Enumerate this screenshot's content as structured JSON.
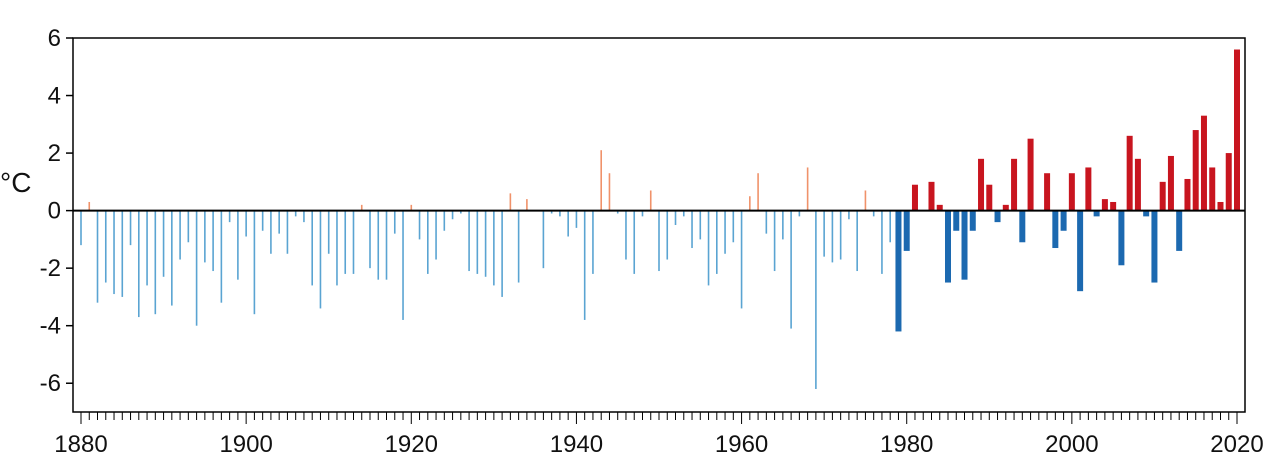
{
  "chart_data": {
    "type": "bar",
    "ylabel": "°C",
    "xlabel": "",
    "ylim": [
      -7,
      6
    ],
    "xlim": [
      1880,
      2020
    ],
    "y_ticks": [
      "6",
      "4",
      "2",
      "0",
      "-2",
      "-4",
      "-6"
    ],
    "x_ticks": [
      "1880",
      "1900",
      "1920",
      "1940",
      "1960",
      "1980",
      "2000",
      "2020"
    ],
    "grid": false,
    "colors": {
      "early_positive": "#f0926a",
      "early_negative": "#5aa4d2",
      "recent_positive": "#c8151f",
      "recent_negative": "#1c69b0",
      "axis": "#000000"
    },
    "x": [
      1880,
      1881,
      1882,
      1883,
      1884,
      1885,
      1886,
      1887,
      1888,
      1889,
      1890,
      1891,
      1892,
      1893,
      1894,
      1895,
      1896,
      1897,
      1898,
      1899,
      1900,
      1901,
      1902,
      1903,
      1904,
      1905,
      1906,
      1907,
      1908,
      1909,
      1910,
      1911,
      1912,
      1913,
      1914,
      1915,
      1916,
      1917,
      1918,
      1919,
      1920,
      1921,
      1922,
      1923,
      1924,
      1925,
      1926,
      1927,
      1928,
      1929,
      1930,
      1931,
      1932,
      1933,
      1934,
      1935,
      1936,
      1937,
      1938,
      1939,
      1940,
      1941,
      1942,
      1943,
      1944,
      1945,
      1946,
      1947,
      1948,
      1949,
      1950,
      1951,
      1952,
      1953,
      1954,
      1955,
      1956,
      1957,
      1958,
      1959,
      1960,
      1961,
      1962,
      1963,
      1964,
      1965,
      1966,
      1967,
      1968,
      1969,
      1970,
      1971,
      1972,
      1973,
      1974,
      1975,
      1976,
      1977,
      1978,
      1979,
      1980,
      1981,
      1982,
      1983,
      1984,
      1985,
      1986,
      1987,
      1988,
      1989,
      1990,
      1991,
      1992,
      1993,
      1994,
      1995,
      1996,
      1997,
      1998,
      1999,
      2000,
      2001,
      2002,
      2003,
      2004,
      2005,
      2006,
      2007,
      2008,
      2009,
      2010,
      2011,
      2012,
      2013,
      2014,
      2015,
      2016,
      2017,
      2018,
      2019,
      2020
    ],
    "values": [
      -1.2,
      0.3,
      -3.2,
      -2.5,
      -2.9,
      -3.0,
      -1.2,
      -3.7,
      -2.6,
      -3.6,
      -2.3,
      -3.3,
      -1.7,
      -1.1,
      -4.0,
      -1.8,
      -2.1,
      -3.2,
      -0.4,
      -2.4,
      -0.9,
      -3.6,
      -0.7,
      -1.5,
      -0.8,
      -1.5,
      -0.2,
      -0.4,
      -2.6,
      -3.4,
      -1.5,
      -2.6,
      -2.2,
      -2.2,
      0.2,
      -2.0,
      -2.4,
      -2.4,
      -0.8,
      -3.8,
      0.2,
      -1.0,
      -2.2,
      -1.7,
      -0.7,
      -0.3,
      -0.1,
      -2.1,
      -2.2,
      -2.3,
      -2.6,
      -3.0,
      0.6,
      -2.5,
      0.4,
      0.0,
      -2.0,
      -0.1,
      -0.2,
      -0.9,
      -0.6,
      -3.8,
      -2.2,
      2.1,
      1.3,
      -0.1,
      -1.7,
      -2.2,
      -0.2,
      0.7,
      -2.1,
      -1.7,
      -0.5,
      -0.2,
      -1.3,
      -1.0,
      -2.6,
      -2.2,
      -1.5,
      -1.1,
      -3.4,
      0.5,
      1.3,
      -0.8,
      -2.1,
      -1.0,
      -4.1,
      -0.2,
      1.5,
      -6.2,
      -1.6,
      -1.8,
      -1.7,
      -0.3,
      -2.1,
      0.7,
      -0.2,
      -2.2,
      -1.1,
      -4.2,
      -1.4,
      0.9,
      0.0,
      1.0,
      0.2,
      -2.5,
      -0.7,
      -2.4,
      -0.7,
      1.8,
      0.9,
      -0.4,
      0.2,
      1.8,
      -1.1,
      2.5,
      0.0,
      1.3,
      -1.3,
      -0.7,
      1.3,
      -2.8,
      1.5,
      -0.2,
      0.4,
      0.3,
      -1.9,
      2.6,
      1.8,
      -0.2,
      -2.5,
      1.0,
      1.9,
      -1.4,
      1.1,
      2.8,
      3.3,
      1.5,
      0.3,
      2.0,
      5.6
    ]
  }
}
